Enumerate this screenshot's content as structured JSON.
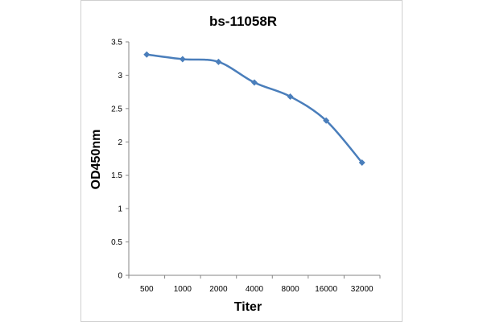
{
  "chart_data": {
    "type": "line",
    "title": "bs-11058R",
    "xlabel": "Titer",
    "ylabel": "OD450nm",
    "categories": [
      "500",
      "1000",
      "2000",
      "4000",
      "8000",
      "16000",
      "32000"
    ],
    "series": [
      {
        "values": [
          3.31,
          3.24,
          3.2,
          2.89,
          2.68,
          2.32,
          1.69
        ]
      }
    ],
    "ylim": [
      0,
      3.5
    ],
    "yticks": [
      "0",
      "0.5",
      "1",
      "1.5",
      "2",
      "2.5",
      "3",
      "3.5"
    ],
    "grid": false,
    "line_color": "#4a7ebb",
    "marker": "diamond"
  }
}
